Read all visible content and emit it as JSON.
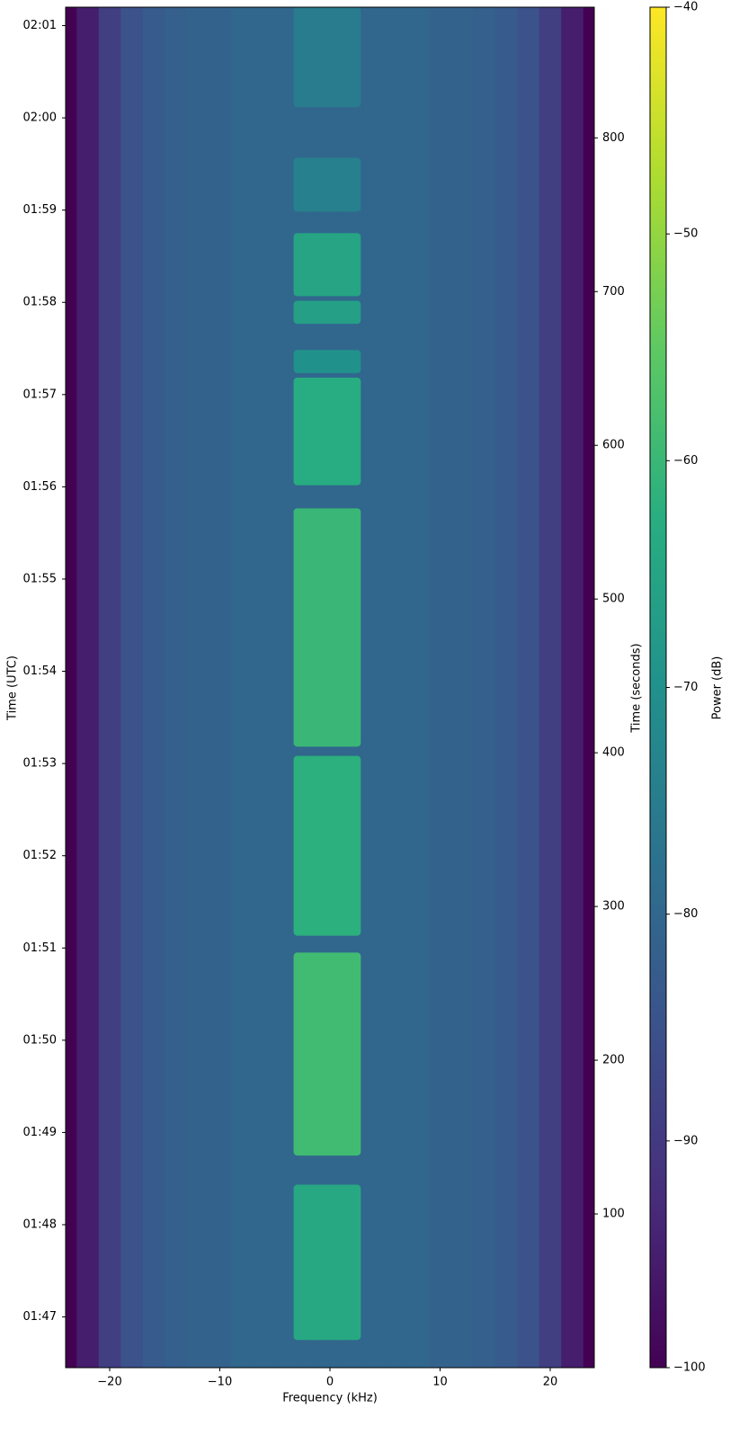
{
  "chart_data": {
    "type": "spectrogram",
    "colormap": "viridis",
    "xlabel": "Frequency (kHz)",
    "ylabel": "Time (UTC)",
    "y2label": "Time (seconds)",
    "colorbar_label": "Power (dB)",
    "xlim": [
      -24,
      24
    ],
    "xticks": [
      {
        "value": -20,
        "label": "−20"
      },
      {
        "value": -10,
        "label": "−10"
      },
      0,
      10,
      20
    ],
    "y2lim": [
      0,
      885
    ],
    "y2ticks": [
      100,
      200,
      300,
      400,
      500,
      600,
      700,
      800
    ],
    "yticks": [
      {
        "value": 33,
        "label": "01:47"
      },
      {
        "value": 93,
        "label": "01:48"
      },
      {
        "value": 153,
        "label": "01:49"
      },
      {
        "value": 213,
        "label": "01:50"
      },
      {
        "value": 273,
        "label": "01:51"
      },
      {
        "value": 333,
        "label": "01:52"
      },
      {
        "value": 393,
        "label": "01:53"
      },
      {
        "value": 453,
        "label": "01:54"
      },
      {
        "value": 513,
        "label": "01:55"
      },
      {
        "value": 573,
        "label": "01:56"
      },
      {
        "value": 633,
        "label": "01:57"
      },
      {
        "value": 693,
        "label": "01:58"
      },
      {
        "value": 753,
        "label": "01:59"
      },
      {
        "value": 813,
        "label": "02:00"
      },
      {
        "value": 873,
        "label": "02:01"
      }
    ],
    "clim": [
      -100,
      -40
    ],
    "cticks": [
      {
        "value": -100,
        "label": "−100"
      },
      {
        "value": -90,
        "label": "−90"
      },
      {
        "value": -80,
        "label": "−80"
      },
      {
        "value": -70,
        "label": "−70"
      },
      {
        "value": -60,
        "label": "−60"
      },
      {
        "value": -50,
        "label": "−50"
      },
      {
        "value": -40,
        "label": "−40"
      }
    ],
    "background": {
      "x": [
        -24,
        -22,
        -20,
        -18,
        -16,
        -14,
        -12,
        -10,
        -8,
        -6,
        -4,
        -2,
        0,
        2,
        4,
        6,
        8,
        10,
        12,
        14,
        16,
        18,
        20,
        22,
        24
      ],
      "values": [
        -100,
        -95,
        -89,
        -85,
        -83,
        -82,
        -81,
        -81,
        -80,
        -80,
        -80,
        -80,
        -80,
        -80,
        -80,
        -80,
        -80,
        -81,
        -81,
        -82,
        -83,
        -85,
        -89,
        -95,
        -100
      ]
    },
    "signal": {
      "freq": [
        -3.3,
        2.8
      ],
      "t_start": [
        18,
        138,
        281,
        404,
        574,
        647,
        679,
        697,
        752,
        820
      ],
      "t_end": [
        119,
        270,
        398,
        559,
        644,
        662,
        694,
        738,
        787,
        885
      ],
      "values": [
        -64,
        -59,
        -62,
        -60,
        -63,
        -70,
        -66,
        -65,
        -74,
        -75
      ]
    }
  }
}
